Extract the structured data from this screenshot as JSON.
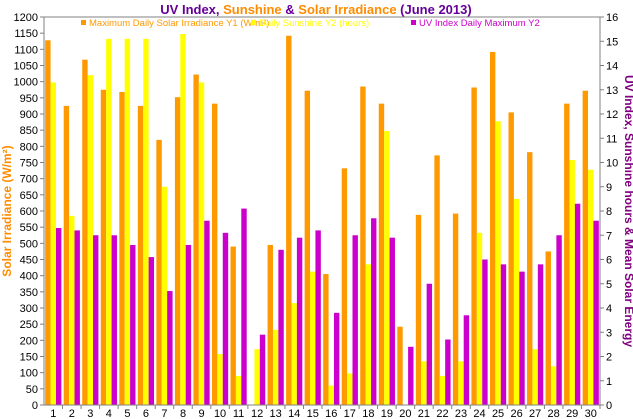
{
  "chart_data": {
    "type": "bar",
    "title_parts": [
      {
        "text": "UV Index",
        "color": "#660099"
      },
      {
        "text": ", ",
        "color": "#660099"
      },
      {
        "text": "Sunshine",
        "color": "#FF8C00"
      },
      {
        "text": " & ",
        "color": "#660099"
      },
      {
        "text": "Solar Irradiance",
        "color": "#FF8C00"
      },
      {
        "text": " (June 2013)",
        "color": "#660099"
      }
    ],
    "ylabel_left": "Solar Irradiance (W/m²)",
    "ylabel_right": "UV Index, Sunshine hours & Mean Solar Energy",
    "ylabel_left_color": "#FF8C00",
    "ylabel_right_color": "#800080",
    "left_axis": {
      "min": 0,
      "max": 1200,
      "step": 50
    },
    "right_axis": {
      "min": 0,
      "max": 16,
      "step": 1
    },
    "legend_position": "top",
    "categories": [
      "1",
      "2",
      "3",
      "4",
      "5",
      "6",
      "7",
      "8",
      "9",
      "10",
      "11",
      "12",
      "13",
      "14",
      "15",
      "16",
      "17",
      "18",
      "19",
      "20",
      "21",
      "22",
      "23",
      "24",
      "25",
      "26",
      "27",
      "28",
      "29",
      "30"
    ],
    "series": [
      {
        "name": "Maximum Daily Solar Irradiance Y1 (W/m²)",
        "axis": "left",
        "color": "#FF9900",
        "values": [
          1128,
          925,
          1068,
          975,
          968,
          925,
          820,
          952,
          1022,
          932,
          490,
          0,
          495,
          1142,
          972,
          405,
          732,
          985,
          932,
          242,
          588,
          772,
          592,
          982,
          1092,
          905,
          782,
          475,
          932,
          972
        ]
      },
      {
        "name": "Daily Sunshine Y2 (hours)",
        "axis": "right",
        "color": "#FFFF00",
        "values": [
          13.3,
          7.8,
          13.6,
          15.1,
          15.1,
          15.1,
          9.0,
          15.3,
          13.3,
          2.1,
          1.2,
          2.3,
          3.1,
          4.2,
          5.5,
          0.8,
          1.3,
          5.8,
          11.3,
          0,
          1.8,
          1.2,
          1.8,
          7.1,
          11.7,
          8.5,
          2.3,
          1.6,
          10.1,
          9.7
        ]
      },
      {
        "name": "UV Index Daily Maximum Y2",
        "axis": "right",
        "color": "#CC00CC",
        "values": [
          7.3,
          7.2,
          7.0,
          7.0,
          6.6,
          6.1,
          4.7,
          6.6,
          7.6,
          7.1,
          8.1,
          2.9,
          6.4,
          6.9,
          7.2,
          3.8,
          7.0,
          7.7,
          6.9,
          2.4,
          5.0,
          2.7,
          3.7,
          6.0,
          5.8,
          5.5,
          5.8,
          7.0,
          8.3,
          7.6
        ]
      }
    ]
  }
}
